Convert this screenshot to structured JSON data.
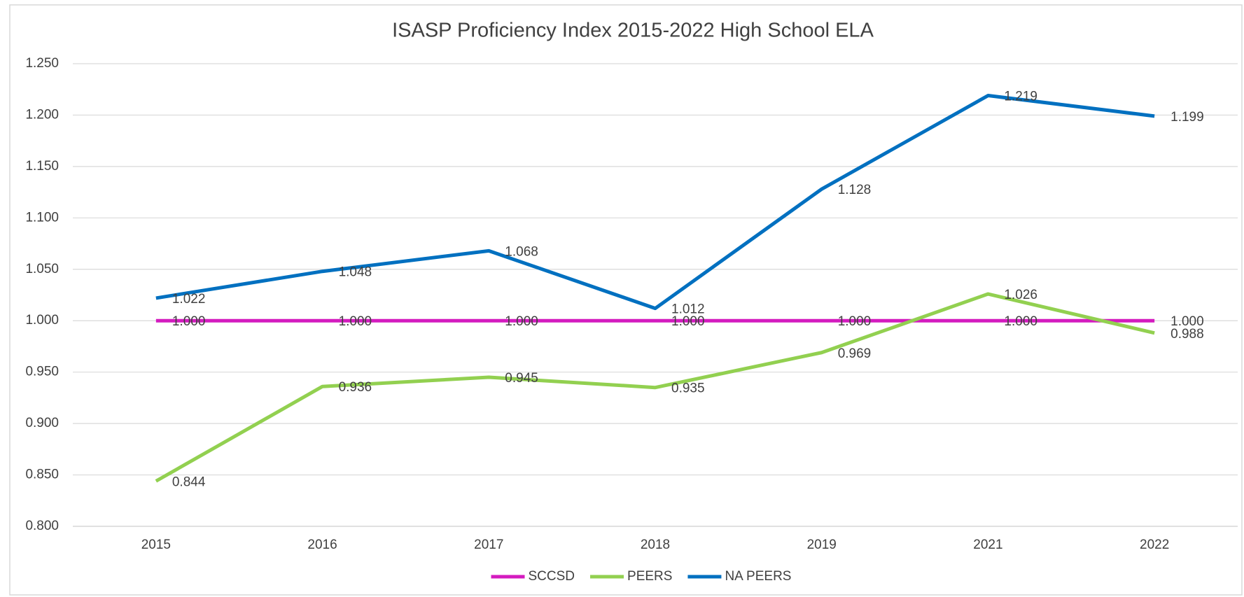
{
  "chart_data": {
    "type": "line",
    "title": "ISASP Proficiency Index 2015-2022  High School ELA",
    "categories": [
      "2015",
      "2016",
      "2017",
      "2018",
      "2019",
      "2021",
      "2022"
    ],
    "series": [
      {
        "name": "SCCSD",
        "color": "#d41bbf",
        "values": [
          1,
          1,
          1,
          1,
          1,
          1,
          1
        ],
        "value_labels": [
          "1.000",
          "1.000",
          "1.000",
          "1.000",
          "1.000",
          "1.000",
          "1.000"
        ]
      },
      {
        "name": "PEERS",
        "color": "#92d050",
        "values": [
          0.844,
          0.936,
          0.945,
          0.935,
          0.969,
          1.026,
          0.988
        ],
        "value_labels": [
          "0.844",
          "0.936",
          "0.945",
          "0.935",
          "0.969",
          "1.026",
          "0.988"
        ]
      },
      {
        "name": "NA PEERS",
        "color": "#0070c0",
        "values": [
          1.022,
          1.048,
          1.068,
          1.012,
          1.128,
          1.219,
          1.199
        ],
        "value_labels": [
          "1.022",
          "1.048",
          "1.068",
          "1.012",
          "1.128",
          "1.219",
          "1.199"
        ]
      }
    ],
    "ylim": [
      0.8,
      1.25
    ],
    "yticks": [
      {
        "value": 0.8,
        "label": "0.800"
      },
      {
        "value": 0.85,
        "label": "0.850"
      },
      {
        "value": 0.9,
        "label": "0.900"
      },
      {
        "value": 0.95,
        "label": "0.950"
      },
      {
        "value": 1,
        "label": "1.000"
      },
      {
        "value": 1.05,
        "label": "1.050"
      },
      {
        "value": 1.1,
        "label": "1.100"
      },
      {
        "value": 1.15,
        "label": "1.150"
      },
      {
        "value": 1.2,
        "label": "1.200"
      },
      {
        "value": 1.25,
        "label": "1.250"
      }
    ],
    "grid": true,
    "legend": "bottom"
  }
}
